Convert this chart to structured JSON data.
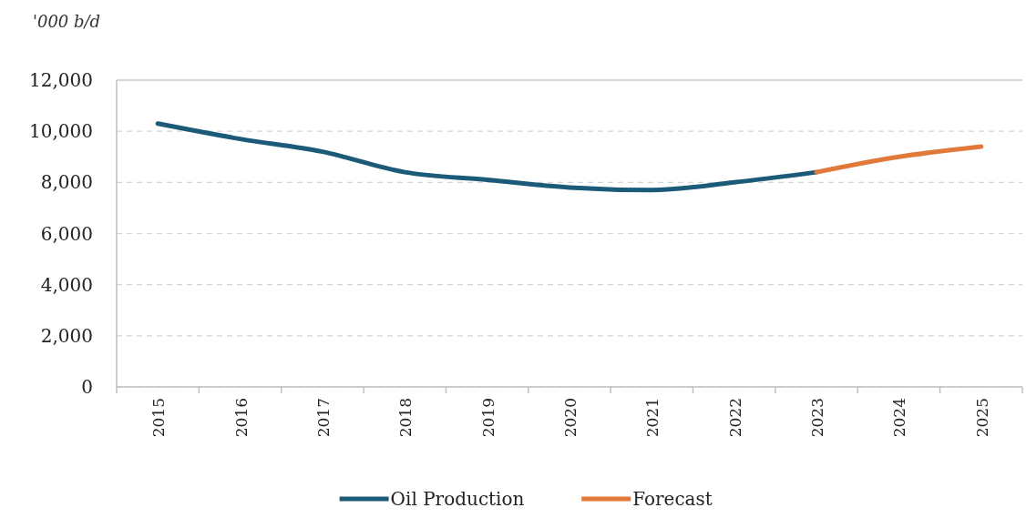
{
  "chart_data": {
    "type": "line",
    "ylabel": "'000 b/d",
    "categories": [
      "2015",
      "2016",
      "2017",
      "2018",
      "2019",
      "2020",
      "2021",
      "2022",
      "2023",
      "2024",
      "2025"
    ],
    "series": [
      {
        "name": "Oil Production",
        "color": "#1b5a78",
        "values": [
          10300,
          9700,
          9200,
          8400,
          8100,
          7800,
          7700,
          8000,
          8400,
          null,
          null
        ]
      },
      {
        "name": "Forecast",
        "color": "#e0793a",
        "values": [
          null,
          null,
          null,
          null,
          null,
          null,
          null,
          null,
          8400,
          9000,
          9400
        ]
      }
    ],
    "ylim": [
      0,
      12000
    ],
    "yticks": [
      0,
      {
        "value": 2000,
        "label": "2,000"
      },
      {
        "value": 4000,
        "label": "4,000"
      },
      {
        "value": 6000,
        "label": "6,000"
      },
      {
        "value": 8000,
        "label": "8,000"
      },
      {
        "value": 10000,
        "label": "10,000"
      },
      {
        "value": 12000,
        "label": "12,000"
      }
    ],
    "grid": "y",
    "legend": "bottom"
  }
}
